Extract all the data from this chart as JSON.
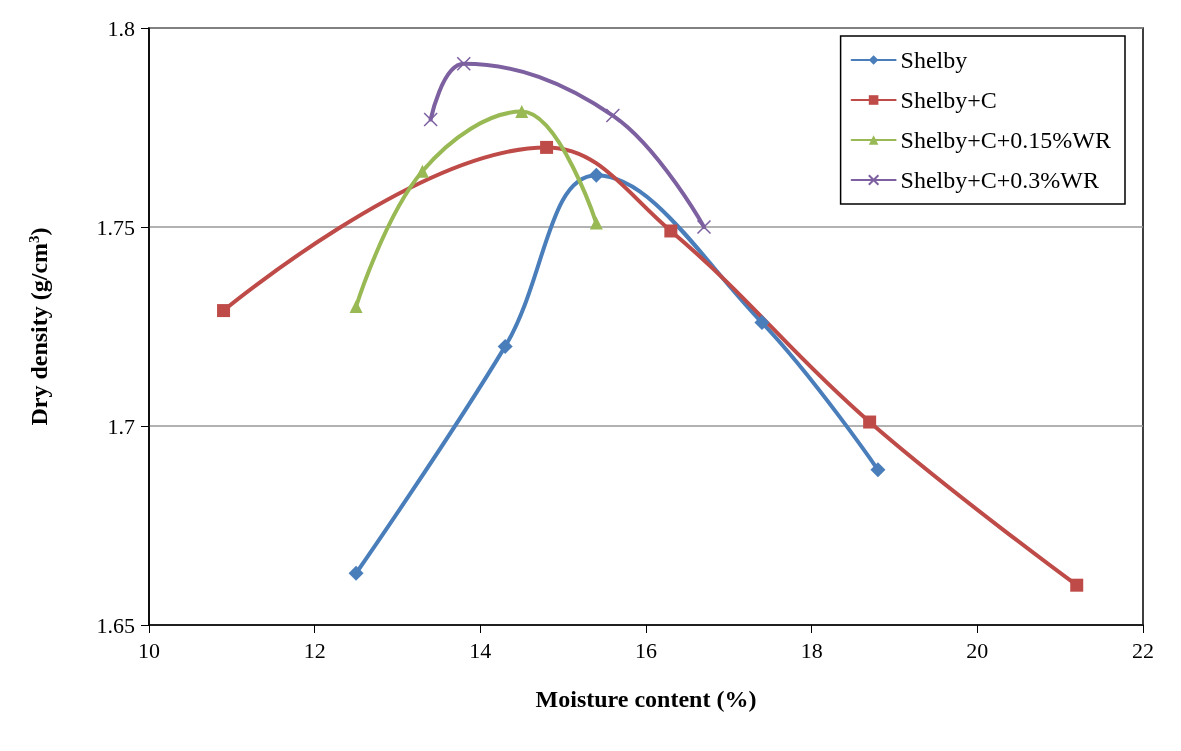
{
  "chart_data": {
    "type": "line",
    "xlabel": "Moisture content (%)",
    "ylabel": "Dry density (g/cm$^{3}$)",
    "xlim": [
      10,
      22
    ],
    "xticks": [
      10,
      12,
      14,
      16,
      18,
      20,
      22
    ],
    "ylim": [
      1.65,
      1.8
    ],
    "yticks": [
      1.65,
      1.7,
      1.75,
      1.8
    ],
    "grid": "y",
    "legend": "top right",
    "series": [
      {
        "name": "Shelby",
        "color": "#4a7ebb",
        "marker": "diamond",
        "x": [
          12.5,
          14.3,
          15.4,
          17.4,
          18.8
        ],
        "values": [
          1.663,
          1.72,
          1.763,
          1.726,
          1.689
        ]
      },
      {
        "name": "Shelby+C",
        "color": "#be4b48",
        "marker": "square",
        "x": [
          10.9,
          14.8,
          16.3,
          18.7,
          21.2
        ],
        "values": [
          1.729,
          1.77,
          1.749,
          1.701,
          1.66
        ]
      },
      {
        "name": "Shelby+C+0.15%WR",
        "color": "#98b954",
        "marker": "triangle",
        "x": [
          12.5,
          13.3,
          14.5,
          15.4
        ],
        "values": [
          1.73,
          1.764,
          1.779,
          1.751
        ]
      },
      {
        "name": "Shelby+C+0.3%WR",
        "color": "#7d60a0",
        "marker": "cross",
        "x": [
          13.4,
          13.8,
          15.6,
          16.7
        ],
        "values": [
          1.777,
          1.791,
          1.778,
          1.75
        ]
      }
    ]
  }
}
